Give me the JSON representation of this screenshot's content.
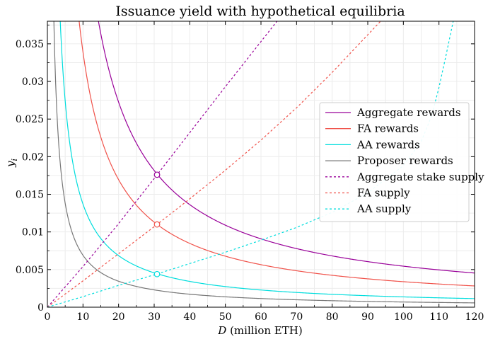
{
  "chart_data": {
    "type": "line",
    "title": "Issuance yield with hypothetical equilibria",
    "xlabel_italic": "D",
    "xlabel_rest": " (million ETH)",
    "ylabel_main": "y",
    "ylabel_sub": "i",
    "xlim": [
      0,
      120
    ],
    "ylim": [
      0,
      0.038
    ],
    "x_ticks": [
      0,
      10,
      20,
      30,
      40,
      50,
      60,
      70,
      80,
      90,
      100,
      110,
      120
    ],
    "x_tick_labels": [
      "0",
      "10",
      "20",
      "30",
      "40",
      "50",
      "60",
      "70",
      "80",
      "90",
      "100",
      "110",
      "120"
    ],
    "y_ticks": [
      0,
      0.005,
      0.01,
      0.015,
      0.02,
      0.025,
      0.03,
      0.035
    ],
    "y_tick_labels": [
      "0",
      "0.005",
      "0.01",
      "0.015",
      "0.02",
      "0.025",
      "0.03",
      "0.035"
    ],
    "grid": true,
    "legend_position": "center-right",
    "series": [
      {
        "name": "Aggregate rewards",
        "style": "solid",
        "color": "#990099",
        "form": "inverse",
        "k": 0.545
      },
      {
        "name": "FA rewards",
        "style": "solid",
        "color": "#f0524a",
        "form": "inverse",
        "k": 0.339
      },
      {
        "name": "AA rewards",
        "style": "solid",
        "color": "#00dddd",
        "form": "inverse",
        "k": 0.137
      },
      {
        "name": "Proposer rewards",
        "style": "solid",
        "color": "#777777",
        "form": "inverse",
        "k": 0.069
      },
      {
        "name": "Aggregate stake supply",
        "style": "dashed",
        "color": "#990099",
        "x": [
          0,
          10,
          20,
          30,
          40,
          50,
          60,
          70,
          80,
          88.5
        ],
        "y": [
          0,
          0.0054,
          0.0111,
          0.0171,
          0.0232,
          0.0293,
          0.0353,
          0.0413,
          0.0472,
          0.038
        ]
      },
      {
        "name": "FA supply",
        "style": "dashed",
        "color": "#f0524a",
        "x": [
          0,
          10,
          20,
          30,
          40,
          50,
          60,
          70,
          80,
          90,
          100
        ],
        "y": [
          0,
          0.0035,
          0.0071,
          0.0107,
          0.0144,
          0.0182,
          0.0222,
          0.0265,
          0.0312,
          0.0362,
          0.0412
        ]
      },
      {
        "name": "AA supply",
        "style": "dashed",
        "color": "#00dddd",
        "x": [
          0,
          10,
          20,
          30,
          40,
          50,
          60,
          70,
          80,
          90,
          100,
          105,
          108,
          110,
          112,
          114
        ],
        "y": [
          0,
          0.0014,
          0.0029,
          0.0043,
          0.0058,
          0.0073,
          0.0089,
          0.0106,
          0.0126,
          0.0152,
          0.0188,
          0.022,
          0.0255,
          0.0292,
          0.0335,
          0.038
        ]
      }
    ],
    "equilibria": [
      {
        "series": "Aggregate rewards",
        "x": 30.8,
        "y": 0.0176,
        "color": "#990099"
      },
      {
        "series": "FA rewards",
        "x": 30.8,
        "y": 0.011,
        "color": "#f0524a"
      },
      {
        "series": "AA rewards",
        "x": 30.8,
        "y": 0.0044,
        "color": "#00dddd"
      }
    ]
  }
}
